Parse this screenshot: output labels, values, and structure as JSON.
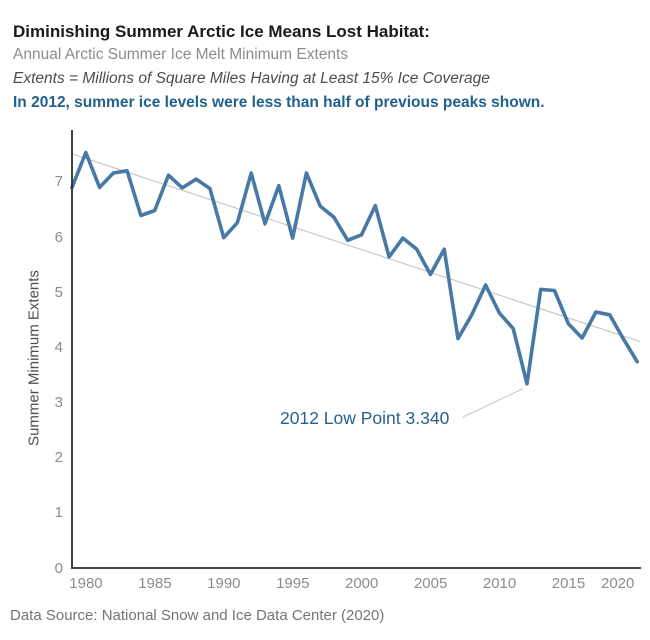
{
  "header": {
    "title": "Diminishing Summer Arctic Ice Means Lost Habitat:",
    "subtitle": "Annual Arctic Summer Ice Melt Minimum Extents",
    "definition": "Extents = Millions of Square Miles Having at Least 15% Ice Coverage",
    "headline": "In 2012, summer ice levels were less than half of previous peaks shown."
  },
  "chart_data": {
    "type": "line",
    "title": "Annual Arctic Summer Ice Melt Minimum Extents",
    "xlabel": "",
    "ylabel": "Summer Minimum Extents",
    "x": [
      1979,
      1980,
      1981,
      1982,
      1983,
      1984,
      1985,
      1986,
      1987,
      1988,
      1989,
      1990,
      1991,
      1992,
      1993,
      1994,
      1995,
      1996,
      1997,
      1998,
      1999,
      2000,
      2001,
      2002,
      2003,
      2004,
      2005,
      2006,
      2007,
      2008,
      2009,
      2010,
      2011,
      2012,
      2013,
      2014,
      2015,
      2016,
      2017,
      2018,
      2019,
      2020
    ],
    "series": [
      {
        "name": "Summer Minimum Extents",
        "values": [
          6.9,
          7.53,
          6.9,
          7.16,
          7.2,
          6.39,
          6.48,
          7.12,
          6.89,
          7.05,
          6.88,
          5.99,
          6.26,
          7.16,
          6.24,
          6.93,
          5.98,
          7.16,
          6.56,
          6.36,
          5.94,
          6.04,
          6.57,
          5.64,
          5.98,
          5.78,
          5.32,
          5.78,
          4.16,
          4.59,
          5.13,
          4.62,
          4.34,
          3.34,
          5.05,
          5.03,
          4.43,
          4.17,
          4.64,
          4.59,
          4.15,
          3.74
        ]
      }
    ],
    "trendline": {
      "type": "linear-regression",
      "shown": true
    },
    "annotation": {
      "text": "2012 Low Point 3.340",
      "year": 2012,
      "value": 3.34
    },
    "x_ticks": [
      1980,
      1985,
      1990,
      1995,
      2000,
      2005,
      2010,
      2015,
      2020
    ],
    "y_ticks": [
      0,
      1,
      2,
      3,
      4,
      5,
      6,
      7
    ],
    "xlim": [
      1979,
      2020.2
    ],
    "ylim": [
      0,
      7.94
    ],
    "grid": false,
    "legend": "none"
  },
  "footer": {
    "source": "Data Source: National Snow and Ice Data Center (2020)"
  },
  "colors": {
    "line": "#4878a5",
    "trend": "#c4c4c4",
    "leader": "#c9c9c9",
    "axis": "#2b2b2b",
    "tick": "#8c8c8c",
    "title": "#1a1a1a",
    "subtitle": "#8c8c8c",
    "definition": "#4d4d4d",
    "headline": "#21618e",
    "annotation": "#27618f",
    "footer": "#757575",
    "background": "#ffffff"
  }
}
